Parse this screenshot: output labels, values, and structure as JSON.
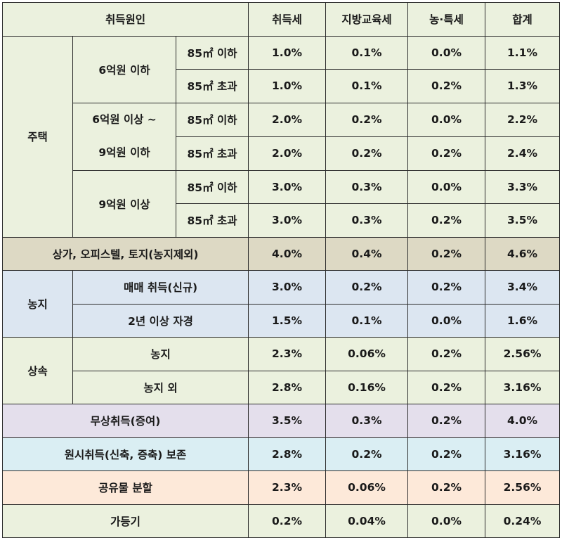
{
  "colors": {
    "header_bg": "#ebf1de",
    "housing_bg": "#ebf1de",
    "commercial_bg": "#ddd9c4",
    "farmland_bg": "#dce6f1",
    "inheritance_bg": "#ebf1de",
    "gift_bg": "#e4dfec",
    "original_bg": "#daeef3",
    "division_bg": "#fde9d9",
    "registration_bg": "#ebf1de",
    "border": "#2b2b2b"
  },
  "header": {
    "cause": "취득원인",
    "acq_tax": "취득세",
    "edu_tax": "지방교육세",
    "rural_tax": "농·특세",
    "total": "합계"
  },
  "housing": {
    "label": "주택",
    "tier1": {
      "label": "6억원 이하",
      "rows": [
        {
          "area": "85㎡ 이하",
          "acq": "1.0%",
          "edu": "0.1%",
          "rural": "0.0%",
          "total": "1.1%"
        },
        {
          "area": "85㎡ 초과",
          "acq": "1.0%",
          "edu": "0.1%",
          "rural": "0.2%",
          "total": "1.3%"
        }
      ]
    },
    "tier2": {
      "label_line1": "6억원 이상 ~",
      "label_line2": "9억원 이하",
      "rows": [
        {
          "area": "85㎡ 이하",
          "acq": "2.0%",
          "edu": "0.2%",
          "rural": "0.0%",
          "total": "2.2%"
        },
        {
          "area": "85㎡ 초과",
          "acq": "2.0%",
          "edu": "0.2%",
          "rural": "0.2%",
          "total": "2.4%"
        }
      ]
    },
    "tier3": {
      "label": "9억원 이상",
      "rows": [
        {
          "area": "85㎡ 이하",
          "acq": "3.0%",
          "edu": "0.3%",
          "rural": "0.0%",
          "total": "3.3%"
        },
        {
          "area": "85㎡ 초과",
          "acq": "3.0%",
          "edu": "0.3%",
          "rural": "0.2%",
          "total": "3.5%"
        }
      ]
    }
  },
  "commercial": {
    "label": "상가, 오피스텔, 토지(농지제외)",
    "acq": "4.0%",
    "edu": "0.4%",
    "rural": "0.2%",
    "total": "4.6%"
  },
  "farmland": {
    "label": "농지",
    "rows": [
      {
        "label": "매매 취득(신규)",
        "acq": "3.0%",
        "edu": "0.2%",
        "rural": "0.2%",
        "total": "3.4%"
      },
      {
        "label": "2년 이상 자경",
        "acq": "1.5%",
        "edu": "0.1%",
        "rural": "0.0%",
        "total": "1.6%"
      }
    ]
  },
  "inheritance": {
    "label": "상속",
    "rows": [
      {
        "label": "농지",
        "acq": "2.3%",
        "edu": "0.06%",
        "rural": "0.2%",
        "total": "2.56%"
      },
      {
        "label": "농지 외",
        "acq": "2.8%",
        "edu": "0.16%",
        "rural": "0.2%",
        "total": "3.16%"
      }
    ]
  },
  "gift": {
    "label": "무상취득(증여)",
    "acq": "3.5%",
    "edu": "0.3%",
    "rural": "0.2%",
    "total": "4.0%"
  },
  "original": {
    "label": "원시취득(신축, 증축) 보존",
    "acq": "2.8%",
    "edu": "0.2%",
    "rural": "0.2%",
    "total": "3.16%"
  },
  "division": {
    "label": "공유물 분할",
    "acq": "2.3%",
    "edu": "0.06%",
    "rural": "0.2%",
    "total": "2.56%"
  },
  "registration": {
    "label": "가등기",
    "acq": "0.2%",
    "edu": "0.04%",
    "rural": "0.0%",
    "total": "0.24%"
  }
}
